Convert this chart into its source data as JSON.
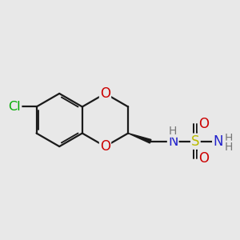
{
  "bg_color": "#e8e8e8",
  "colors": {
    "bond": "#1a1a1a",
    "O": "#cc0000",
    "N": "#2222cc",
    "S": "#bbbb00",
    "Cl": "#00aa00",
    "H": "#777777"
  },
  "bond_lw": 1.6,
  "font_size": 10.5,
  "xlim": [
    -3.5,
    3.0
  ],
  "ylim": [
    -1.8,
    1.8
  ]
}
